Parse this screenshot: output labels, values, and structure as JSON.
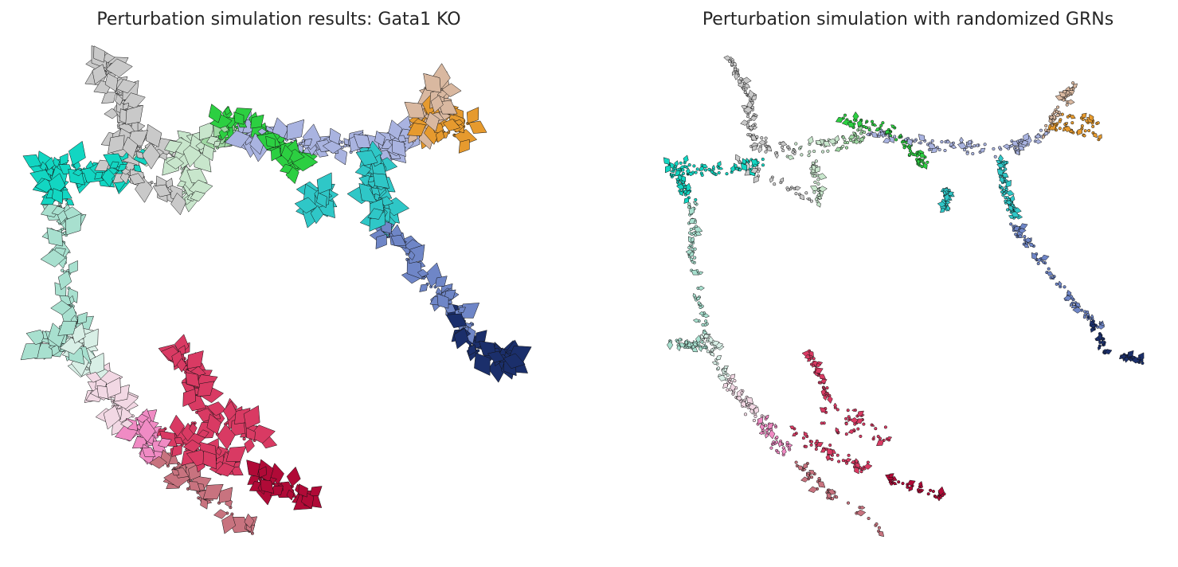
{
  "chart_data": [
    {
      "type": "scatter",
      "title": "Perturbation simulation results: Gata1 KO",
      "grid": false,
      "axes_visible": false,
      "marks": "cells as small dots with quiver arrows showing simulated shift vectors, colored by cluster",
      "arrow_scale": "large"
    },
    {
      "type": "scatter",
      "title": "Perturbation simulation with randomized GRNs",
      "grid": false,
      "axes_visible": false,
      "marks": "cells as small dots with short quiver arrows, colored by cluster",
      "arrow_scale": "small"
    }
  ],
  "clusters": [
    {
      "color": "#e69a2e"
    },
    {
      "color": "#d9b8a0"
    },
    {
      "color": "#a9b3e0"
    },
    {
      "color": "#2fc7c7"
    },
    {
      "color": "#6f86c7"
    },
    {
      "color": "#1b2f6b"
    },
    {
      "color": "#2ccf41"
    },
    {
      "color": "#9fd8a3"
    },
    {
      "color": "#c8e6cc"
    },
    {
      "color": "#c9c9c9"
    },
    {
      "color": "#12d6c2"
    },
    {
      "color": "#a8e0cf"
    },
    {
      "color": "#d8efe6"
    },
    {
      "color": "#f2d8e4"
    },
    {
      "color": "#f08bc4"
    },
    {
      "color": "#d93a63"
    },
    {
      "color": "#c8737f"
    },
    {
      "color": "#b00a37"
    }
  ]
}
